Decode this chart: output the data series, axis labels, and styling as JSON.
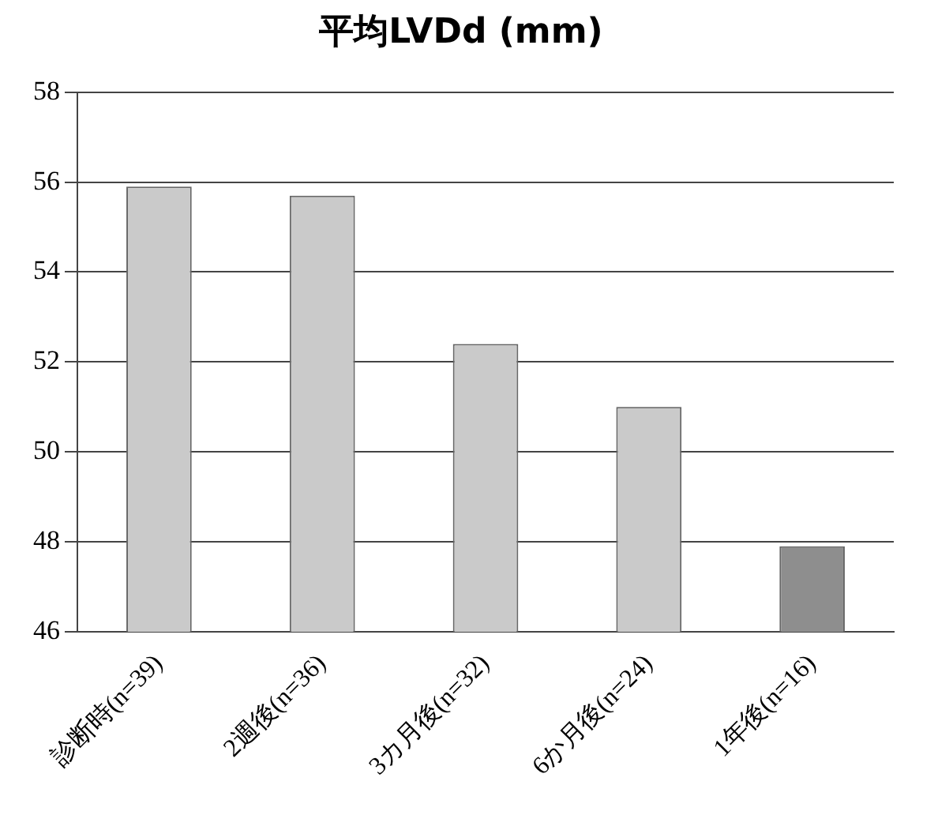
{
  "chart_data": {
    "type": "bar",
    "title": "平均LVDd (mm)",
    "categories": [
      "診断時(n=39)",
      "2週後(n=36)",
      "3カ月後(n=32)",
      "6か月後(n=24)",
      "1年後(n=16)"
    ],
    "values": [
      55.9,
      55.7,
      52.4,
      51.0,
      47.9
    ],
    "colors": [
      "#cacaca",
      "#cacaca",
      "#cacaca",
      "#cacaca",
      "#8e8e8e"
    ],
    "ylim": [
      46,
      58
    ],
    "yticks": [
      46,
      48,
      50,
      52,
      54,
      56,
      58
    ],
    "grid": "y",
    "legend": false
  }
}
